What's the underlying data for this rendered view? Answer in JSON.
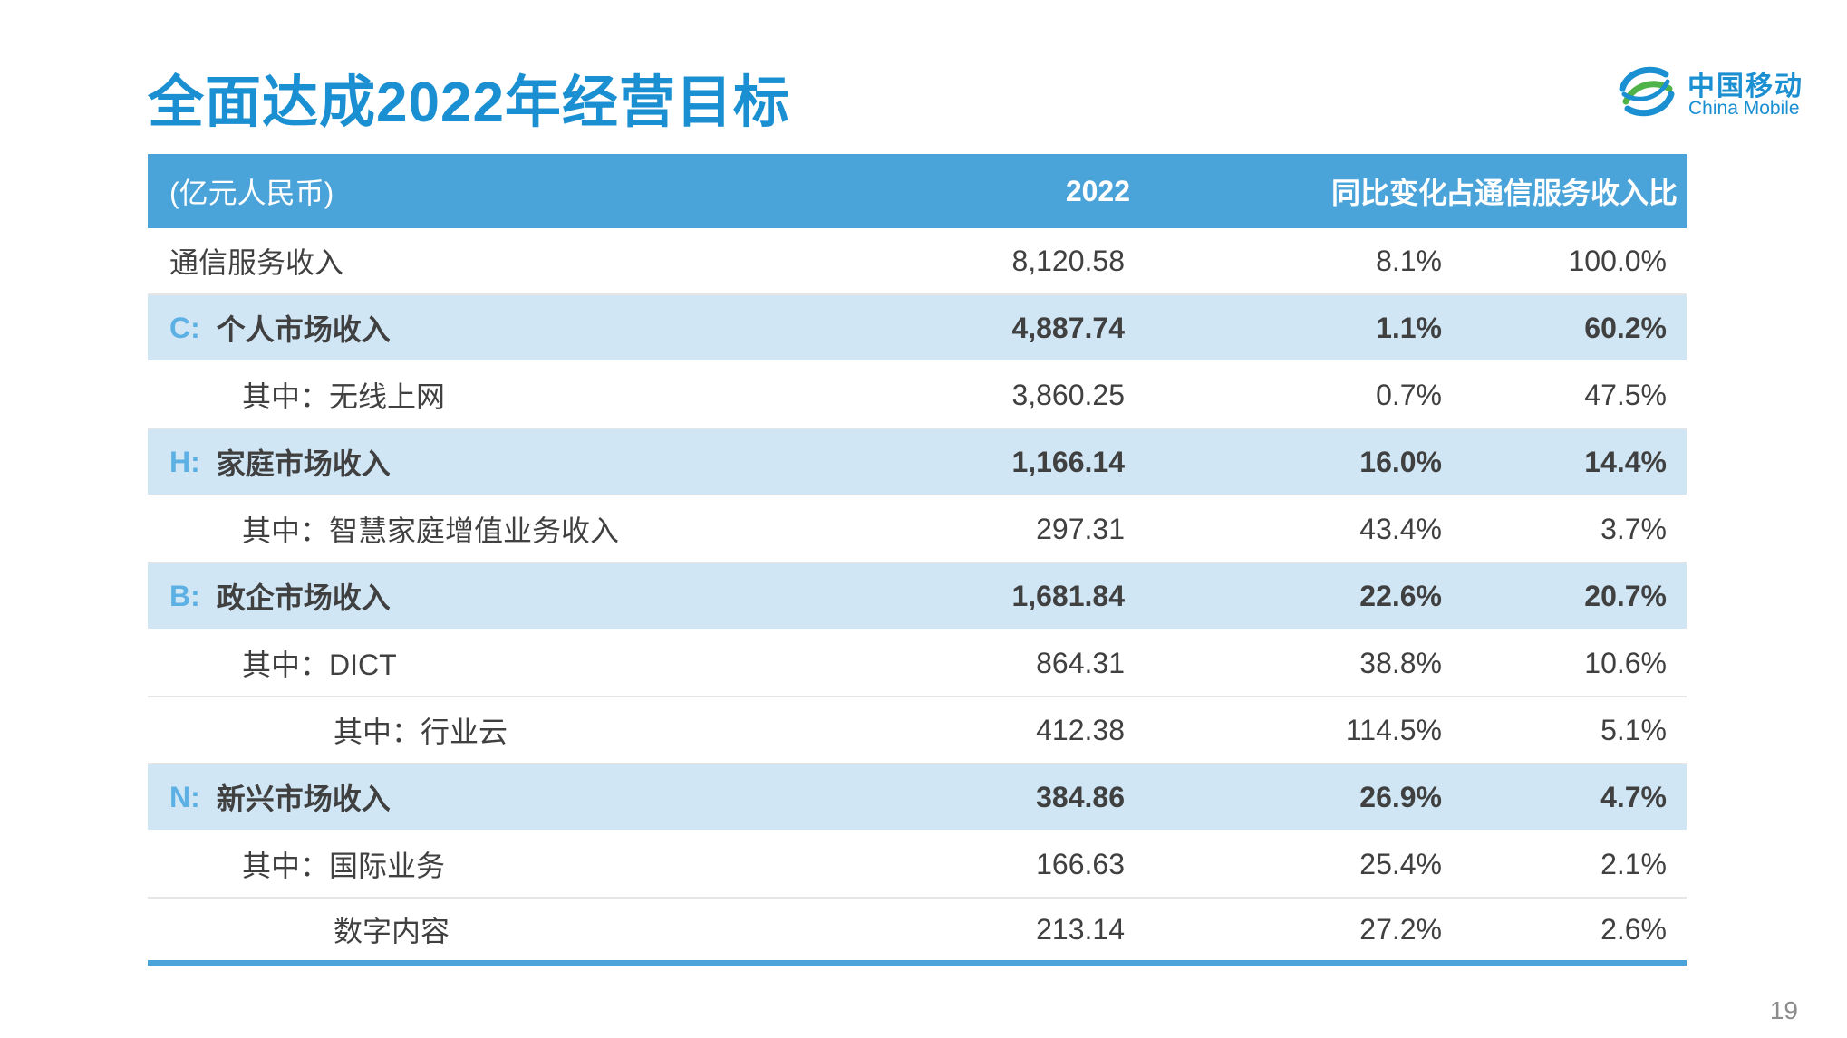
{
  "title": "全面达成2022年经营目标",
  "logo": {
    "cn": "中国移动",
    "en": "China Mobile"
  },
  "table": {
    "headers": [
      "(亿元人民币)",
      "2022",
      "同比变化",
      "占通信服务收入比"
    ],
    "rows": [
      {
        "prefix": "",
        "label": "通信服务收入",
        "value": "8,120.58",
        "yoy": "8.1%",
        "share": "100.0%"
      },
      {
        "prefix": "C:",
        "label": "个人市场收入",
        "value": "4,887.74",
        "yoy": "1.1%",
        "share": "60.2%"
      },
      {
        "prefix": "",
        "label": "其中：无线上网",
        "value": "3,860.25",
        "yoy": "0.7%",
        "share": "47.5%"
      },
      {
        "prefix": "H:",
        "label": "家庭市场收入",
        "value": "1,166.14",
        "yoy": "16.0%",
        "share": "14.4%"
      },
      {
        "prefix": "",
        "label": "其中：智慧家庭增值业务收入",
        "value": "297.31",
        "yoy": "43.4%",
        "share": "3.7%"
      },
      {
        "prefix": "B:",
        "label": "政企市场收入",
        "value": "1,681.84",
        "yoy": "22.6%",
        "share": "20.7%"
      },
      {
        "prefix": "",
        "label": "其中：DICT",
        "value": "864.31",
        "yoy": "38.8%",
        "share": "10.6%"
      },
      {
        "prefix": "",
        "label": "其中：行业云",
        "value": "412.38",
        "yoy": "114.5%",
        "share": "5.1%"
      },
      {
        "prefix": "N:",
        "label": "新兴市场收入",
        "value": "384.86",
        "yoy": "26.9%",
        "share": "4.7%"
      },
      {
        "prefix": "",
        "label": "其中：国际业务",
        "value": "166.63",
        "yoy": "25.4%",
        "share": "2.1%"
      },
      {
        "prefix": "",
        "label": "数字内容",
        "value": "213.14",
        "yoy": "27.2%",
        "share": "2.6%"
      }
    ]
  },
  "page_number": "19",
  "colors": {
    "accent": "#1a8fd1",
    "header_bg": "#4aa3d9",
    "band_bg": "#d0e6f5",
    "prefix": "#5db0e4"
  }
}
